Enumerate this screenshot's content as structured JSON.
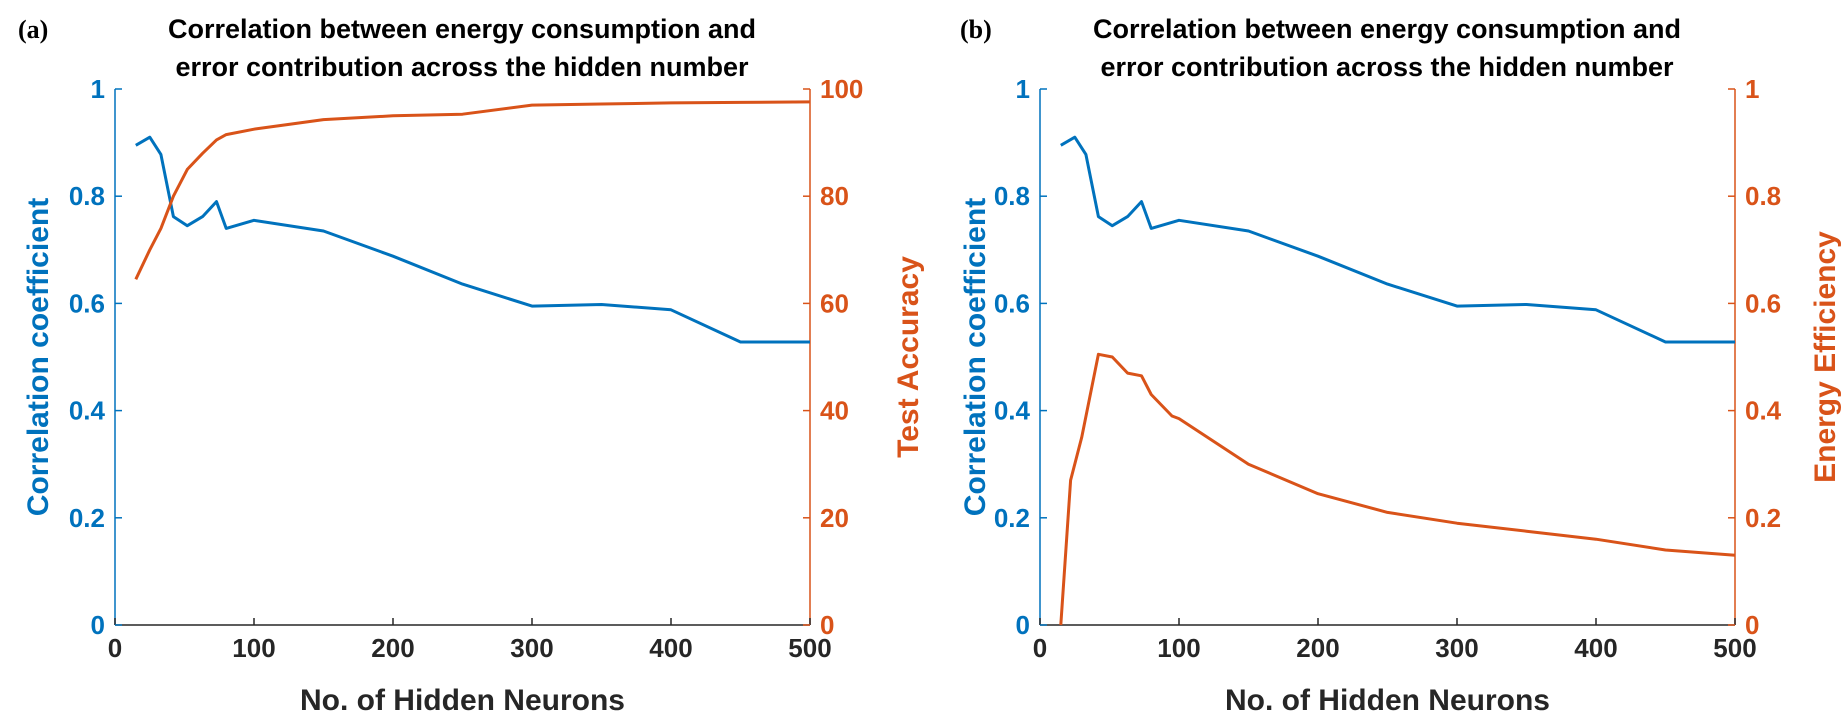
{
  "colors": {
    "blue": "#0072BD",
    "orange": "#D95319",
    "axis": "#262626"
  },
  "chart_data": [
    {
      "panel_label": "(a)",
      "type": "line",
      "title_lines": [
        "Correlation between energy consumption and",
        "error contribution across the hidden number"
      ],
      "xlabel": "No. of Hidden Neurons",
      "ylabel_left": "Correlation coefficient",
      "ylabel_right": "Test Accuracy",
      "xlim": [
        0,
        500
      ],
      "ylim_left": [
        0,
        1
      ],
      "ylim_right": [
        0,
        100
      ],
      "xticks": [
        "0",
        "100",
        "200",
        "300",
        "400",
        "500"
      ],
      "yticks_left": [
        "0",
        "0.2",
        "0.4",
        "0.6",
        "0.8",
        "1"
      ],
      "yticks_right": [
        "0",
        "20",
        "40",
        "60",
        "80",
        "100"
      ],
      "grid": false,
      "series": [
        {
          "axis": "left",
          "color": "#0072BD",
          "x": [
            15,
            25,
            33,
            42,
            52,
            63,
            73,
            80,
            100,
            150,
            200,
            250,
            300,
            350,
            400,
            450,
            500
          ],
          "values": [
            0.895,
            0.91,
            0.878,
            0.762,
            0.745,
            0.762,
            0.79,
            0.74,
            0.755,
            0.735,
            0.688,
            0.636,
            0.595,
            0.598,
            0.588,
            0.528,
            0.528
          ]
        },
        {
          "axis": "right",
          "color": "#D95319",
          "x": [
            15,
            25,
            33,
            42,
            52,
            63,
            73,
            80,
            100,
            150,
            200,
            250,
            300,
            350,
            400,
            450,
            500
          ],
          "values": [
            64.5,
            70,
            74,
            80,
            85,
            88,
            90.5,
            91.5,
            92.5,
            94.3,
            95,
            95.3,
            97,
            97.2,
            97.4,
            97.5,
            97.6
          ]
        }
      ]
    },
    {
      "panel_label": "(b)",
      "type": "line",
      "title_lines": [
        "Correlation between energy consumption and",
        "error contribution across the hidden number"
      ],
      "xlabel": "No. of Hidden Neurons",
      "ylabel_left": "Correlation coefficient",
      "ylabel_right": "Energy Efficiency",
      "xlim": [
        0,
        500
      ],
      "ylim_left": [
        0,
        1
      ],
      "ylim_right": [
        0,
        1
      ],
      "xticks": [
        "0",
        "100",
        "200",
        "300",
        "400",
        "500"
      ],
      "yticks_left": [
        "0",
        "0.2",
        "0.4",
        "0.6",
        "0.8",
        "1"
      ],
      "yticks_right": [
        "0",
        "0.2",
        "0.4",
        "0.6",
        "0.8",
        "1"
      ],
      "grid": false,
      "series": [
        {
          "axis": "left",
          "color": "#0072BD",
          "x": [
            15,
            25,
            33,
            42,
            52,
            63,
            73,
            80,
            100,
            150,
            200,
            250,
            300,
            350,
            400,
            450,
            500
          ],
          "values": [
            0.895,
            0.91,
            0.878,
            0.762,
            0.745,
            0.762,
            0.79,
            0.74,
            0.755,
            0.735,
            0.688,
            0.636,
            0.595,
            0.598,
            0.588,
            0.528,
            0.528
          ]
        },
        {
          "axis": "right",
          "color": "#D95319",
          "x": [
            15,
            22,
            30,
            42,
            52,
            63,
            73,
            80,
            95,
            100,
            150,
            200,
            250,
            300,
            350,
            400,
            450,
            500
          ],
          "values": [
            0,
            0.27,
            0.35,
            0.505,
            0.5,
            0.47,
            0.465,
            0.43,
            0.39,
            0.385,
            0.3,
            0.245,
            0.21,
            0.19,
            0.175,
            0.16,
            0.14,
            0.13
          ]
        }
      ]
    }
  ]
}
